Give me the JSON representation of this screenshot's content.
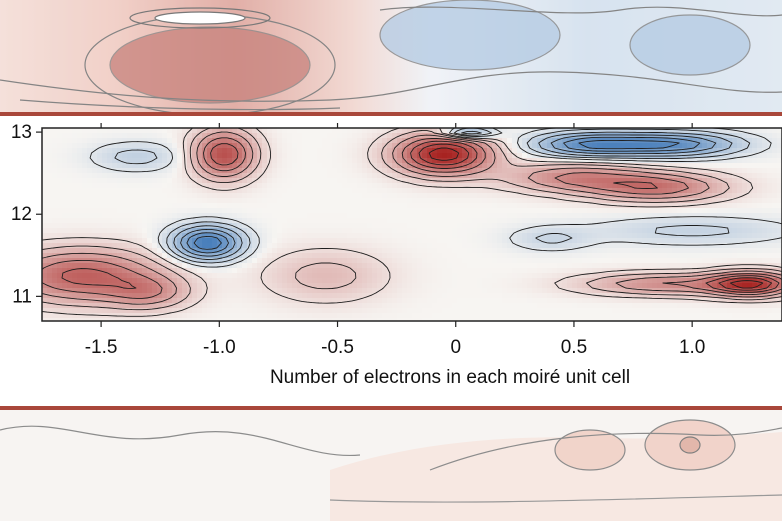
{
  "chart_data": {
    "type": "heatmap",
    "title": "",
    "xlabel": "Number of electrons in each moiré unit cell",
    "ylabel": "",
    "xlim": [
      -1.75,
      1.38
    ],
    "ylim": [
      10.7,
      13.05
    ],
    "x_ticks": [
      -1.5,
      -1.0,
      -0.5,
      0,
      0.5,
      1.0
    ],
    "x_tick_labels": [
      "-1.5",
      "-1.0",
      "-0.5",
      "0",
      "0.5",
      "1.0"
    ],
    "y_ticks": [
      11,
      12,
      13
    ],
    "y_tick_labels": [
      "11",
      "12",
      "13"
    ],
    "colormap": {
      "negative": "#2f6db3",
      "zero": "#f7f5f2",
      "positive": "#a61f1d"
    },
    "features": [
      {
        "x": -0.05,
        "y": 12.73,
        "amplitude": 1.0,
        "sx": 0.14,
        "sy": 0.17
      },
      {
        "x": 0.05,
        "y": 12.99,
        "amplitude": -0.6,
        "sx": 0.08,
        "sy": 0.05
      },
      {
        "x": -0.98,
        "y": 12.73,
        "amplitude": 0.75,
        "sx": 0.09,
        "sy": 0.2
      },
      {
        "x": -1.05,
        "y": 11.65,
        "amplitude": -0.9,
        "sx": 0.1,
        "sy": 0.14
      },
      {
        "x": -1.58,
        "y": 11.25,
        "amplitude": 0.65,
        "sx": 0.22,
        "sy": 0.22
      },
      {
        "x": -1.3,
        "y": 11.05,
        "amplitude": 0.35,
        "sx": 0.12,
        "sy": 0.14
      },
      {
        "x": 0.55,
        "y": 12.85,
        "amplitude": -0.65,
        "sx": 0.16,
        "sy": 0.1
      },
      {
        "x": 0.9,
        "y": 12.85,
        "amplitude": -0.75,
        "sx": 0.2,
        "sy": 0.1
      },
      {
        "x": 0.5,
        "y": 12.45,
        "amplitude": 0.45,
        "sx": 0.2,
        "sy": 0.12
      },
      {
        "x": 0.85,
        "y": 12.33,
        "amplitude": 0.55,
        "sx": 0.2,
        "sy": 0.12
      },
      {
        "x": 0.9,
        "y": 11.15,
        "amplitude": 0.45,
        "sx": 0.25,
        "sy": 0.09
      },
      {
        "x": 1.25,
        "y": 11.15,
        "amplitude": 0.85,
        "sx": 0.12,
        "sy": 0.1
      },
      {
        "x": -1.35,
        "y": 12.7,
        "amplitude": -0.22,
        "sx": 0.13,
        "sy": 0.12
      },
      {
        "x": -0.55,
        "y": 11.25,
        "amplitude": 0.22,
        "sx": 0.18,
        "sy": 0.22
      },
      {
        "x": 0.4,
        "y": 11.7,
        "amplitude": -0.18,
        "sx": 0.12,
        "sy": 0.1
      },
      {
        "x": 1.0,
        "y": 11.8,
        "amplitude": -0.2,
        "sx": 0.3,
        "sy": 0.12
      }
    ]
  }
}
